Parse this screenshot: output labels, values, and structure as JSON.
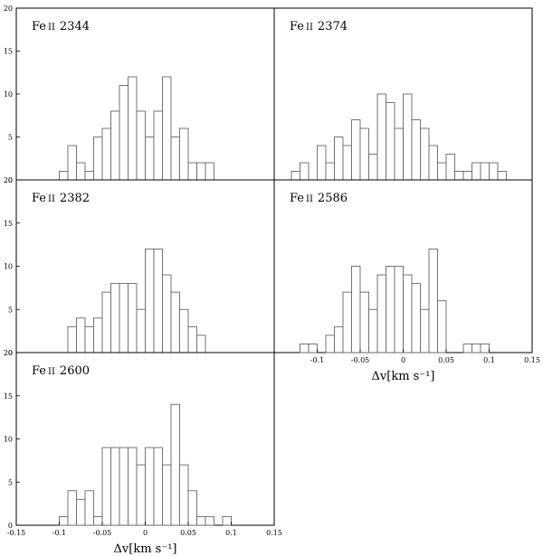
{
  "chart_data": [
    {
      "type": "bar",
      "title": "Fe II 2344",
      "title_element": "Fe",
      "title_ion": "II",
      "title_line": "2344",
      "bin_width": 0.01,
      "bin_centers": [
        -0.095,
        -0.085,
        -0.075,
        -0.065,
        -0.055,
        -0.045,
        -0.035,
        -0.025,
        -0.015,
        -0.005,
        0.005,
        0.015,
        0.025,
        0.035,
        0.045,
        0.055,
        0.065,
        0.075,
        0.085
      ],
      "values": [
        1,
        4,
        2,
        1,
        5,
        6,
        8,
        11,
        12,
        8,
        5,
        8,
        12,
        5,
        6,
        2,
        2,
        2,
        0
      ],
      "xlim": [
        -0.15,
        0.15
      ],
      "ylim": [
        0,
        20
      ],
      "yticks": [
        "0",
        "5",
        "10",
        "15",
        "20"
      ],
      "xticks": [],
      "xlabel": ""
    },
    {
      "type": "bar",
      "title": "Fe II 2374",
      "title_element": "Fe",
      "title_ion": "II",
      "title_line": "2374",
      "bin_width": 0.01,
      "bin_centers": [
        -0.125,
        -0.115,
        -0.105,
        -0.095,
        -0.085,
        -0.075,
        -0.065,
        -0.055,
        -0.045,
        -0.035,
        -0.025,
        -0.015,
        -0.005,
        0.005,
        0.015,
        0.025,
        0.035,
        0.045,
        0.055,
        0.065,
        0.075,
        0.085,
        0.095,
        0.105,
        0.115,
        0.125
      ],
      "values": [
        1,
        2,
        0,
        4,
        2,
        5,
        4,
        7,
        6,
        3,
        10,
        9,
        6,
        10,
        7,
        6,
        4,
        2,
        3,
        1,
        1,
        2,
        2,
        2,
        1,
        0
      ],
      "xlim": [
        -0.15,
        0.15
      ],
      "ylim": [
        0,
        20
      ],
      "yticks": [],
      "xticks": [],
      "xlabel": ""
    },
    {
      "type": "bar",
      "title": "Fe II 2382",
      "title_element": "Fe",
      "title_ion": "II",
      "title_line": "2382",
      "bin_width": 0.01,
      "bin_centers": [
        -0.085,
        -0.075,
        -0.065,
        -0.055,
        -0.045,
        -0.035,
        -0.025,
        -0.015,
        -0.005,
        0.005,
        0.015,
        0.025,
        0.035,
        0.045,
        0.055,
        0.065,
        0.075,
        0.085
      ],
      "values": [
        3,
        4,
        3,
        4,
        7,
        8,
        8,
        8,
        5,
        12,
        12,
        9,
        7,
        5,
        3,
        2,
        0,
        0
      ],
      "xlim": [
        -0.15,
        0.15
      ],
      "ylim": [
        0,
        20
      ],
      "yticks": [
        "0",
        "5",
        "10",
        "15",
        "20"
      ],
      "xticks": [],
      "xlabel": ""
    },
    {
      "type": "bar",
      "title": "Fe II 2586",
      "title_element": "Fe",
      "title_ion": "II",
      "title_line": "2586",
      "bin_width": 0.01,
      "bin_centers": [
        -0.115,
        -0.105,
        -0.095,
        -0.085,
        -0.075,
        -0.065,
        -0.055,
        -0.045,
        -0.035,
        -0.025,
        -0.015,
        -0.005,
        0.005,
        0.015,
        0.025,
        0.035,
        0.045,
        0.055,
        0.065,
        0.075,
        0.085,
        0.095
      ],
      "values": [
        1,
        1,
        0,
        2,
        3,
        7,
        10,
        7,
        5,
        9,
        10,
        10,
        9,
        8,
        5,
        12,
        6,
        0,
        0,
        1,
        1,
        1
      ],
      "xlim": [
        -0.15,
        0.15
      ],
      "ylim": [
        0,
        20
      ],
      "yticks": [],
      "xticks": [
        "-0.1",
        "-0.05",
        "0",
        "0.05",
        "0.1",
        "0.15"
      ],
      "xlabel": "Δv[km s⁻¹]"
    },
    {
      "type": "bar",
      "title": "Fe II 2600",
      "title_element": "Fe",
      "title_ion": "II",
      "title_line": "2600",
      "bin_width": 0.01,
      "bin_centers": [
        -0.095,
        -0.085,
        -0.075,
        -0.065,
        -0.055,
        -0.045,
        -0.035,
        -0.025,
        -0.015,
        -0.005,
        0.005,
        0.015,
        0.025,
        0.035,
        0.045,
        0.055,
        0.065,
        0.075,
        0.085,
        0.095,
        0.105
      ],
      "values": [
        1,
        4,
        3,
        4,
        1,
        9,
        9,
        9,
        9,
        7,
        9,
        9,
        7,
        14,
        7,
        4,
        1,
        1,
        0,
        1,
        0
      ],
      "xlim": [
        -0.15,
        0.15
      ],
      "ylim": [
        0,
        20
      ],
      "yticks": [
        "0",
        "5",
        "10",
        "15",
        "20"
      ],
      "xticks": [
        "-0.15",
        "-0.1",
        "-0.05",
        "0",
        "0.05",
        "0.1",
        "0.15"
      ],
      "xlabel": "Δv[km s⁻¹]"
    }
  ]
}
